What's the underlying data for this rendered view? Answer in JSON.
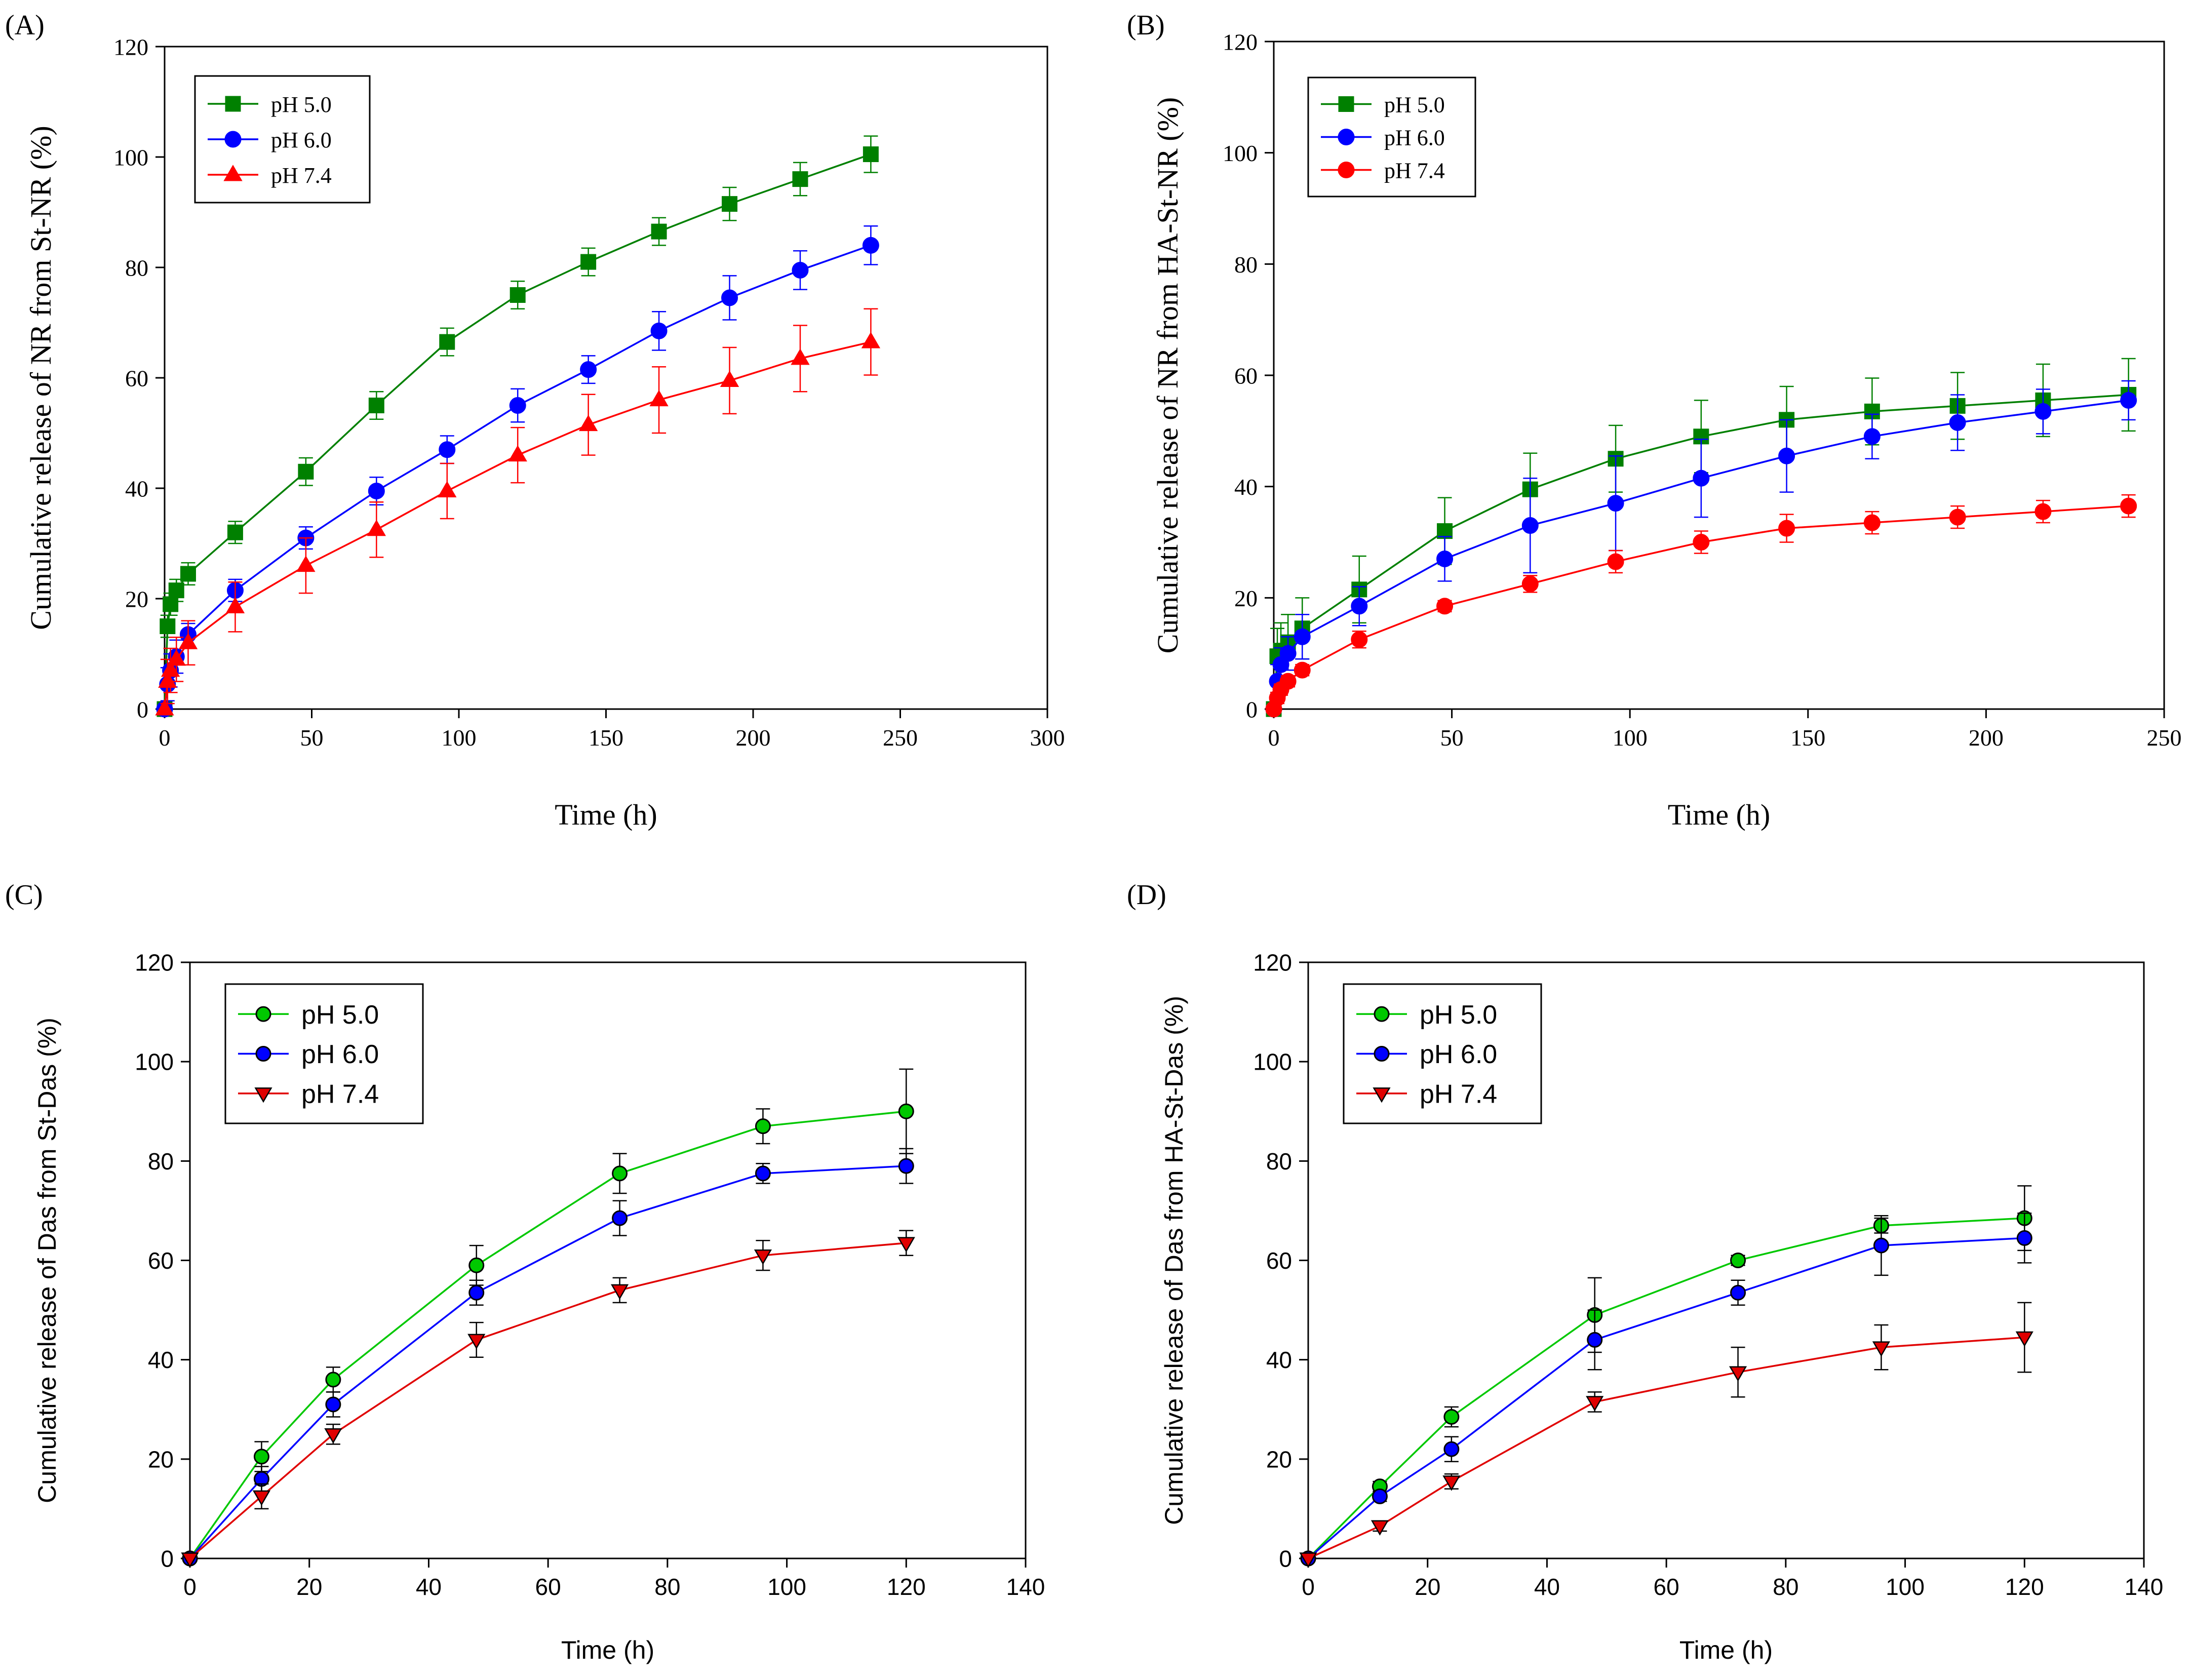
{
  "colors": {
    "ph50_square": "#008000",
    "ph60": "#0000ff",
    "ph74": "#ff0000",
    "ph50_circle": "#00c800",
    "ph50_circle_line": "#00a000",
    "ph74_tri_fill": "#e00000",
    "ph74_tri_line": "#ff3030",
    "ph60_dark": "#0000c0"
  },
  "chart_data": [
    {
      "panel_label": "(A)",
      "type": "line",
      "xlabel": "Time (h)",
      "ylabel": "Cumulative release of NR from St-NR (%)",
      "xlim": [
        0,
        300
      ],
      "ylim": [
        0,
        120
      ],
      "xticks": [
        "0",
        "50",
        "100",
        "150",
        "200",
        "250",
        "300"
      ],
      "yticks": [
        "0",
        "20",
        "40",
        "60",
        "80",
        "100",
        "120"
      ],
      "legend_position": "top-left",
      "series": [
        {
          "name": "pH 5.0",
          "marker": "square",
          "color": "#008000",
          "x": [
            0,
            1,
            2,
            4,
            8,
            24,
            48,
            72,
            96,
            120,
            144,
            168,
            192,
            216,
            240
          ],
          "y": [
            0,
            15,
            19,
            21.5,
            24.5,
            32,
            43,
            55,
            66.5,
            75,
            81,
            86.5,
            91.5,
            96,
            100.5
          ],
          "err": [
            0,
            2,
            2,
            2,
            2,
            2,
            2.5,
            2.5,
            2.5,
            2.5,
            2.5,
            2.5,
            3,
            3,
            3.3
          ]
        },
        {
          "name": "pH 6.0",
          "marker": "circle",
          "color": "#0000ff",
          "x": [
            0,
            1,
            2,
            4,
            8,
            24,
            48,
            72,
            96,
            120,
            144,
            168,
            192,
            216,
            240
          ],
          "y": [
            0,
            4.5,
            7,
            9.5,
            13.5,
            21.5,
            31,
            39.5,
            47,
            55,
            61.5,
            68.5,
            74.5,
            79.5,
            84
          ],
          "err": [
            0,
            3,
            3,
            3,
            2,
            2,
            2,
            2.5,
            2.5,
            3,
            2.5,
            3.5,
            4,
            3.5,
            3.5
          ]
        },
        {
          "name": "pH 7.4",
          "marker": "triangle",
          "color": "#ff0000",
          "x": [
            0,
            1,
            2,
            4,
            8,
            24,
            48,
            72,
            96,
            120,
            144,
            168,
            192,
            216,
            240
          ],
          "y": [
            0,
            5,
            7,
            9,
            12,
            18.5,
            26,
            32.5,
            39.5,
            46,
            51.5,
            56,
            59.5,
            63.5,
            66.5
          ],
          "err": [
            0,
            4,
            4,
            4,
            4,
            4.5,
            5,
            5,
            5,
            5,
            5.5,
            6,
            6,
            6,
            6
          ]
        }
      ]
    },
    {
      "panel_label": "(B)",
      "type": "line",
      "xlabel": "Time (h)",
      "ylabel": "Cumulative release of NR from HA-St-NR (%)",
      "xlim": [
        0,
        250
      ],
      "ylim": [
        0,
        120
      ],
      "xticks": [
        "0",
        "50",
        "100",
        "150",
        "200",
        "250"
      ],
      "yticks": [
        "0",
        "20",
        "40",
        "60",
        "80",
        "100",
        "120"
      ],
      "legend_position": "top-left",
      "series": [
        {
          "name": "pH 5.0",
          "marker": "square",
          "color": "#008000",
          "x": [
            0,
            1,
            2,
            4,
            8,
            24,
            48,
            72,
            96,
            120,
            144,
            168,
            192,
            216,
            240
          ],
          "y": [
            0,
            9.5,
            10.5,
            12,
            14.5,
            21.5,
            32,
            39.5,
            45,
            49,
            52,
            53.5,
            54.5,
            55.5,
            56.5
          ],
          "err": [
            0,
            5,
            5,
            5,
            5.5,
            6,
            6,
            6.5,
            6,
            6.5,
            6,
            6,
            6,
            6.5,
            6.5
          ]
        },
        {
          "name": "pH 6.0",
          "marker": "circle",
          "color": "#0000ff",
          "x": [
            0,
            1,
            2,
            4,
            8,
            24,
            48,
            72,
            96,
            120,
            144,
            168,
            192,
            216,
            240
          ],
          "y": [
            0,
            5,
            8,
            10,
            13,
            18.5,
            27,
            33,
            37,
            41.5,
            45.5,
            49,
            51.5,
            53.5,
            55.5
          ],
          "err": [
            0,
            3,
            3,
            3,
            4,
            3.5,
            4,
            8.5,
            8.5,
            7,
            6.5,
            4,
            5,
            4,
            3.5
          ]
        },
        {
          "name": "pH 7.4",
          "marker": "circle",
          "color": "#ff0000",
          "x": [
            0,
            1,
            2,
            4,
            8,
            24,
            48,
            72,
            96,
            120,
            144,
            168,
            192,
            216,
            240
          ],
          "y": [
            0,
            2,
            3.5,
            5,
            7,
            12.5,
            18.5,
            22.5,
            26.5,
            30,
            32.5,
            33.5,
            34.5,
            35.5,
            36.5
          ],
          "err": [
            0,
            1,
            1,
            1,
            1,
            1.5,
            1,
            1.5,
            2,
            2,
            2.5,
            2,
            2,
            2,
            2
          ]
        }
      ]
    },
    {
      "panel_label": "(C)",
      "type": "line",
      "xlabel": "Time (h)",
      "ylabel": "Cumulative release of Das from St-Das (%)",
      "xlim": [
        0,
        140
      ],
      "ylim": [
        0,
        120
      ],
      "xticks": [
        "0",
        "20",
        "40",
        "60",
        "80",
        "100",
        "120",
        "140"
      ],
      "yticks": [
        "0",
        "20",
        "40",
        "60",
        "80",
        "100",
        "120"
      ],
      "legend_position": "top-left",
      "series": [
        {
          "name": "pH 5.0",
          "marker": "circle",
          "color": "#00c800",
          "x": [
            0,
            12,
            24,
            48,
            72,
            96,
            120
          ],
          "y": [
            0,
            20.5,
            36,
            59,
            77.5,
            87,
            90
          ],
          "err": [
            0,
            3,
            2.5,
            4,
            4,
            3.5,
            8.5
          ]
        },
        {
          "name": "pH 6.0",
          "marker": "circle",
          "color": "#0000ff",
          "x": [
            0,
            12,
            24,
            48,
            72,
            96,
            120
          ],
          "y": [
            0,
            16,
            31,
            53.5,
            68.5,
            77.5,
            79
          ],
          "err": [
            0,
            2.5,
            2.5,
            2.5,
            3.5,
            2,
            3.5
          ]
        },
        {
          "name": "pH 7.4",
          "marker": "triangle-down",
          "color": "#e00000",
          "x": [
            0,
            12,
            24,
            48,
            72,
            96,
            120
          ],
          "y": [
            0,
            12.5,
            25,
            44,
            54,
            61,
            63.5
          ],
          "err": [
            0,
            2.5,
            2,
            3.5,
            2.5,
            3,
            2.5
          ]
        }
      ]
    },
    {
      "panel_label": "(D)",
      "type": "line",
      "xlabel": "Time (h)",
      "ylabel": "Cumulative release of Das from HA-St-Das (%)",
      "xlim": [
        0,
        140
      ],
      "ylim": [
        0,
        120
      ],
      "xticks": [
        "0",
        "20",
        "40",
        "60",
        "80",
        "100",
        "120",
        "140"
      ],
      "yticks": [
        "0",
        "20",
        "40",
        "60",
        "80",
        "100",
        "120"
      ],
      "legend_position": "top-left",
      "series": [
        {
          "name": "pH 5.0",
          "marker": "circle",
          "color": "#00c800",
          "x": [
            0,
            12,
            24,
            48,
            72,
            96,
            120
          ],
          "y": [
            0,
            14.5,
            28.5,
            49,
            60,
            67,
            68.5
          ],
          "err": [
            0,
            1,
            2,
            7.5,
            1,
            1.5,
            6.5
          ]
        },
        {
          "name": "pH 6.0",
          "marker": "circle",
          "color": "#0000ff",
          "x": [
            0,
            12,
            24,
            48,
            72,
            96,
            120
          ],
          "y": [
            0,
            12.5,
            22,
            44,
            53.5,
            63,
            64.5
          ],
          "err": [
            0,
            1,
            2.5,
            6,
            2.5,
            6,
            5
          ]
        },
        {
          "name": "pH 7.4",
          "marker": "triangle-down",
          "color": "#e00000",
          "x": [
            0,
            12,
            24,
            48,
            72,
            96,
            120
          ],
          "y": [
            0,
            6.5,
            15.5,
            31.5,
            37.5,
            42.5,
            44.5
          ],
          "err": [
            0,
            1,
            1.5,
            2,
            5,
            4.5,
            7
          ]
        }
      ]
    }
  ]
}
